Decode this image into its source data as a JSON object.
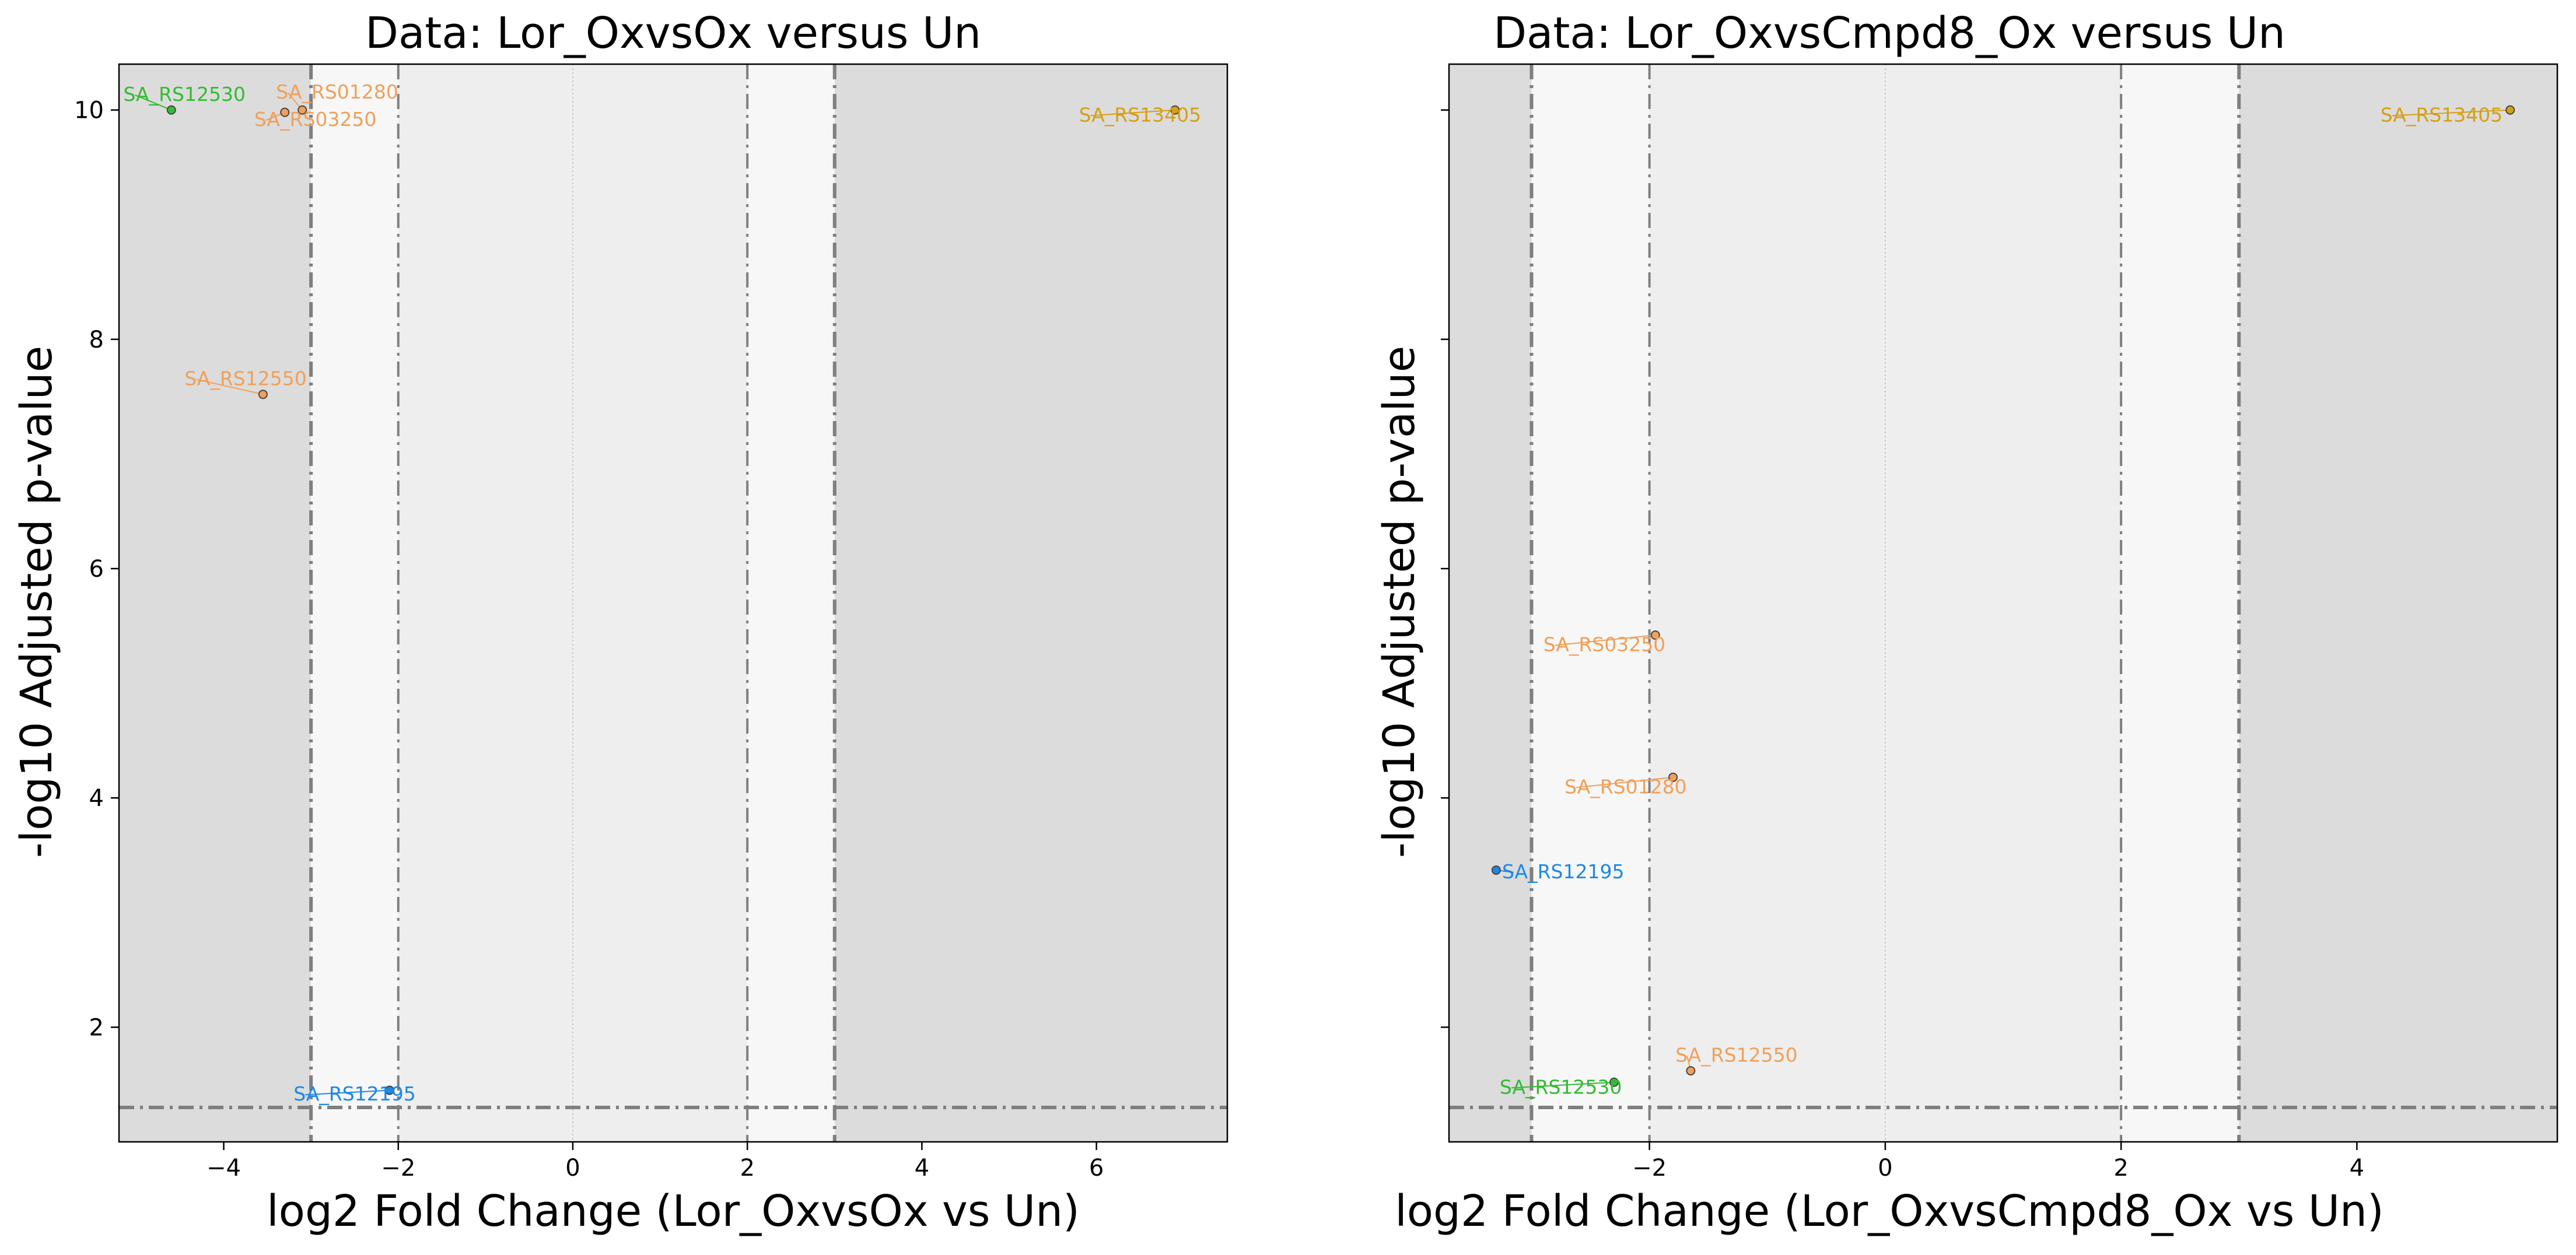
{
  "chart_data": [
    {
      "type": "scatter",
      "title": "Data: Lor_OxvsOx versus Un",
      "xlabel": "log2 Fold Change (Lor_OxvsOx vs Un)",
      "ylabel": "-log10 Adjusted p-value",
      "xlim": [
        -5.2,
        7.5
      ],
      "ylim": [
        1.0,
        10.4
      ],
      "xticks": [
        -4,
        -2,
        0,
        2,
        4,
        6
      ],
      "xtick_labels": [
        "−4",
        "−2",
        "0",
        "2",
        "4",
        "6"
      ],
      "yticks": [
        2,
        4,
        6,
        8,
        10
      ],
      "ytick_labels": [
        "2",
        "4",
        "6",
        "8",
        "10"
      ],
      "show_ytick_labels": true,
      "fc_thresholds": [
        -3,
        -2,
        2,
        3
      ],
      "center_line": 0,
      "pvalue_threshold": 1.3,
      "grid": false,
      "points": [
        {
          "label": "SA_RS12530",
          "x": -4.6,
          "y": 10.0,
          "color": "#33bb33",
          "label_x": -5.15,
          "label_y": 10.08
        },
        {
          "label": "SA_RS01280",
          "x": -3.1,
          "y": 10.0,
          "color": "#f0a05a",
          "label_x": -3.4,
          "label_y": 10.1
        },
        {
          "label": "SA_RS03250",
          "x": -3.3,
          "y": 9.98,
          "color": "#f0a05a",
          "label_x": -3.65,
          "label_y": 9.86
        },
        {
          "label": "SA_RS13405",
          "x": 6.9,
          "y": 10.0,
          "color": "#d4a017",
          "label_x": 5.8,
          "label_y": 9.9
        },
        {
          "label": "SA_RS12550",
          "x": -3.55,
          "y": 7.52,
          "color": "#f0a05a",
          "label_x": -4.45,
          "label_y": 7.6
        },
        {
          "label": "SA_RS12195",
          "x": -2.1,
          "y": 1.45,
          "color": "#1e88e5",
          "label_x": -3.2,
          "label_y": 1.36
        }
      ]
    },
    {
      "type": "scatter",
      "title": "Data: Lor_OxvsCmpd8_Ox versus Un",
      "xlabel": "log2 Fold Change (Lor_OxvsCmpd8_Ox vs Un)",
      "ylabel": "-log10 Adjusted p-value",
      "xlim": [
        -3.7,
        5.7
      ],
      "ylim": [
        1.0,
        10.4
      ],
      "xticks": [
        -2,
        0,
        2,
        4
      ],
      "xtick_labels": [
        "−2",
        "0",
        "2",
        "4"
      ],
      "yticks": [
        2,
        4,
        6,
        8,
        10
      ],
      "ytick_labels": [
        "2",
        "4",
        "6",
        "8",
        "10"
      ],
      "show_ytick_labels": false,
      "fc_thresholds": [
        -3,
        -2,
        2,
        3
      ],
      "center_line": 0,
      "pvalue_threshold": 1.3,
      "grid": false,
      "points": [
        {
          "label": "SA_RS13405",
          "x": 5.3,
          "y": 10.0,
          "color": "#d4a017",
          "label_x": 4.2,
          "label_y": 9.9
        },
        {
          "label": "SA_RS03250",
          "x": -1.95,
          "y": 5.42,
          "color": "#f0a05a",
          "label_x": -2.9,
          "label_y": 5.28
        },
        {
          "label": "SA_RS01280",
          "x": -1.8,
          "y": 4.18,
          "color": "#f0a05a",
          "label_x": -2.72,
          "label_y": 4.04
        },
        {
          "label": "SA_RS12195",
          "x": -3.3,
          "y": 3.37,
          "color": "#1e88e5",
          "label_x": -3.25,
          "label_y": 3.3
        },
        {
          "label": "SA_RS12550",
          "x": -1.65,
          "y": 1.62,
          "color": "#f0a05a",
          "label_x": -1.78,
          "label_y": 1.7
        },
        {
          "label": "SA_RS12530",
          "x": -2.3,
          "y": 1.52,
          "color": "#33bb33",
          "label_x": -3.27,
          "label_y": 1.42
        }
      ]
    }
  ],
  "colors": {
    "shade_outer": "#dcdcdc",
    "shade_mid": "#f7f7f7",
    "shade_inner": "#eeeeee",
    "threshold_line": "#7f7f7f",
    "center_line": "#c8c8c8",
    "axes_edge": "#000000",
    "marker_edge": "#444444"
  }
}
